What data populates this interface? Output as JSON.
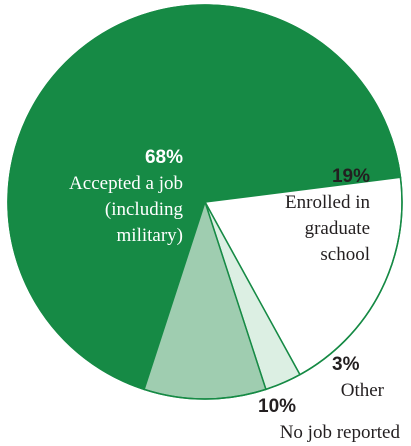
{
  "chart_data": {
    "type": "pie",
    "title": "",
    "slices": [
      {
        "label_lines": [
          "Accepted a job",
          "(including",
          "military)"
        ],
        "value": 68,
        "percent_label": "68%",
        "color": "#168a45",
        "text_color": "#ffffff"
      },
      {
        "label_lines": [
          "Enrolled in",
          "graduate",
          "school"
        ],
        "value": 19,
        "percent_label": "19%",
        "color": "#ffffff",
        "text_color": "#231f20"
      },
      {
        "label_lines": [
          "Other"
        ],
        "value": 3,
        "percent_label": "3%",
        "color": "#dcefe3",
        "text_color": "#231f20"
      },
      {
        "label_lines": [
          "No job reported"
        ],
        "value": 10,
        "percent_label": "10%",
        "color": "#9fcdb0",
        "text_color": "#231f20"
      }
    ],
    "outline_color": "#168a45",
    "legend": "none"
  }
}
